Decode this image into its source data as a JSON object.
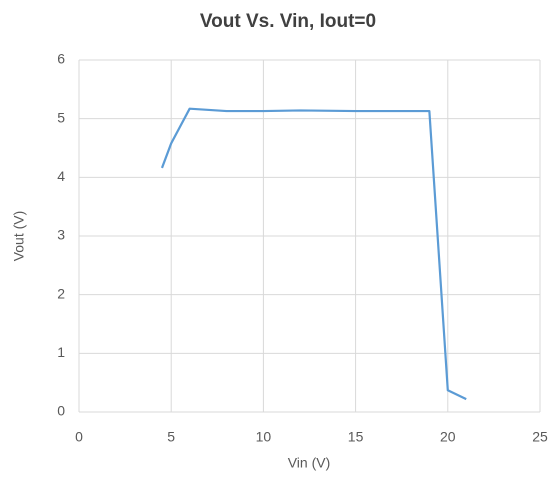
{
  "chart_data": {
    "type": "line",
    "title": "Vout Vs. Vin, Iout=0",
    "x_label": "Vin (V)",
    "y_label": "Vout (V)",
    "x": [
      4.5,
      5,
      6,
      8,
      10,
      12,
      15,
      19,
      20,
      21
    ],
    "series": [
      {
        "name": "Vout",
        "color": "#5b9bd5",
        "values": [
          4.16,
          4.58,
          5.17,
          5.13,
          5.13,
          5.14,
          5.13,
          5.13,
          0.37,
          0.22
        ]
      }
    ],
    "xlim": [
      0,
      25
    ],
    "xticks": [
      0,
      5,
      10,
      15,
      20,
      25
    ],
    "ylim": [
      0,
      6
    ],
    "yticks": [
      0,
      1,
      2,
      3,
      4,
      5,
      6
    ],
    "grid": true
  }
}
